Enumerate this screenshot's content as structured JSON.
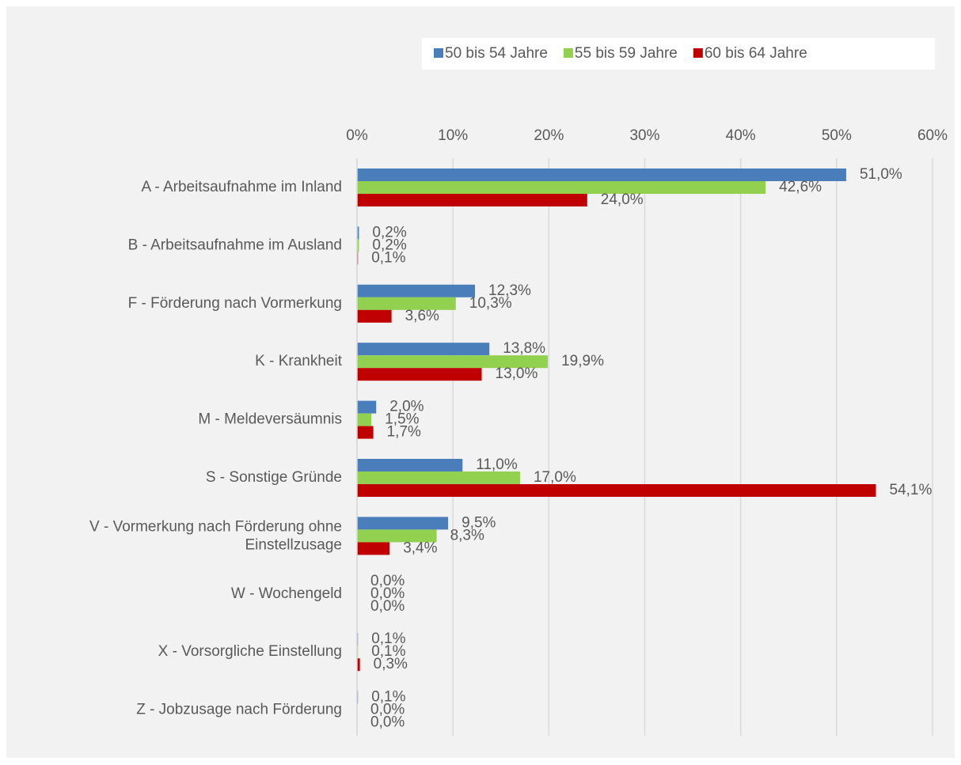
{
  "chart_data": {
    "type": "bar",
    "orientation": "horizontal",
    "categories": [
      "A - Arbeitsaufnahme im Inland",
      "B - Arbeitsaufnahme im Ausland",
      "F - Förderung nach Vormerkung",
      "K - Krankheit",
      "M - Meldeversäumnis",
      "S - Sonstige Gründe",
      "V - Vormerkung nach Förderung ohne Einstellzusage",
      "W - Wochengeld",
      "X - Vorsorgliche Einstellung",
      "Z - Jobzusage nach Förderung"
    ],
    "series": [
      {
        "name": "50 bis 54 Jahre",
        "color": "#4a7ebb",
        "label_color": "#0070c0",
        "values": [
          51.0,
          0.2,
          12.3,
          13.8,
          2.0,
          11.0,
          9.5,
          0.0,
          0.1,
          0.1
        ],
        "value_labels": [
          "51,0%",
          "0,2%",
          "12,3%",
          "13,8%",
          "2,0%",
          "11,0%",
          "9,5%",
          "0,0%",
          "0,1%",
          "0,1%"
        ]
      },
      {
        "name": "55 bis 59 Jahre",
        "color": "#92d050",
        "label_color": "#92d050",
        "values": [
          42.6,
          0.2,
          10.3,
          19.9,
          1.5,
          17.0,
          8.3,
          0.0,
          0.1,
          0.0
        ],
        "value_labels": [
          "42,6%",
          "0,2%",
          "10,3%",
          "19,9%",
          "1,5%",
          "17,0%",
          "8,3%",
          "0,0%",
          "0,1%",
          "0,0%"
        ]
      },
      {
        "name": "60 bis 64 Jahre",
        "color": "#c00000",
        "label_color": "#c00000",
        "values": [
          24.0,
          0.1,
          3.6,
          13.0,
          1.7,
          54.1,
          3.4,
          0.0,
          0.3,
          0.0
        ],
        "value_labels": [
          "24,0%",
          "0,1%",
          "3,6%",
          "13,0%",
          "1,7%",
          "54,1%",
          "3,4%",
          "0,0%",
          "0,3%",
          "0,0%"
        ]
      }
    ],
    "xlim": [
      0,
      60
    ],
    "xticks": [
      {
        "value": 0,
        "label": "0%"
      },
      {
        "value": 10,
        "label": "10%"
      },
      {
        "value": 20,
        "label": "20%"
      },
      {
        "value": 30,
        "label": "30%"
      },
      {
        "value": 40,
        "label": "40%"
      },
      {
        "value": 50,
        "label": "50%"
      },
      {
        "value": 60,
        "label": "60%"
      }
    ],
    "grid": true,
    "legend": "top-right"
  }
}
